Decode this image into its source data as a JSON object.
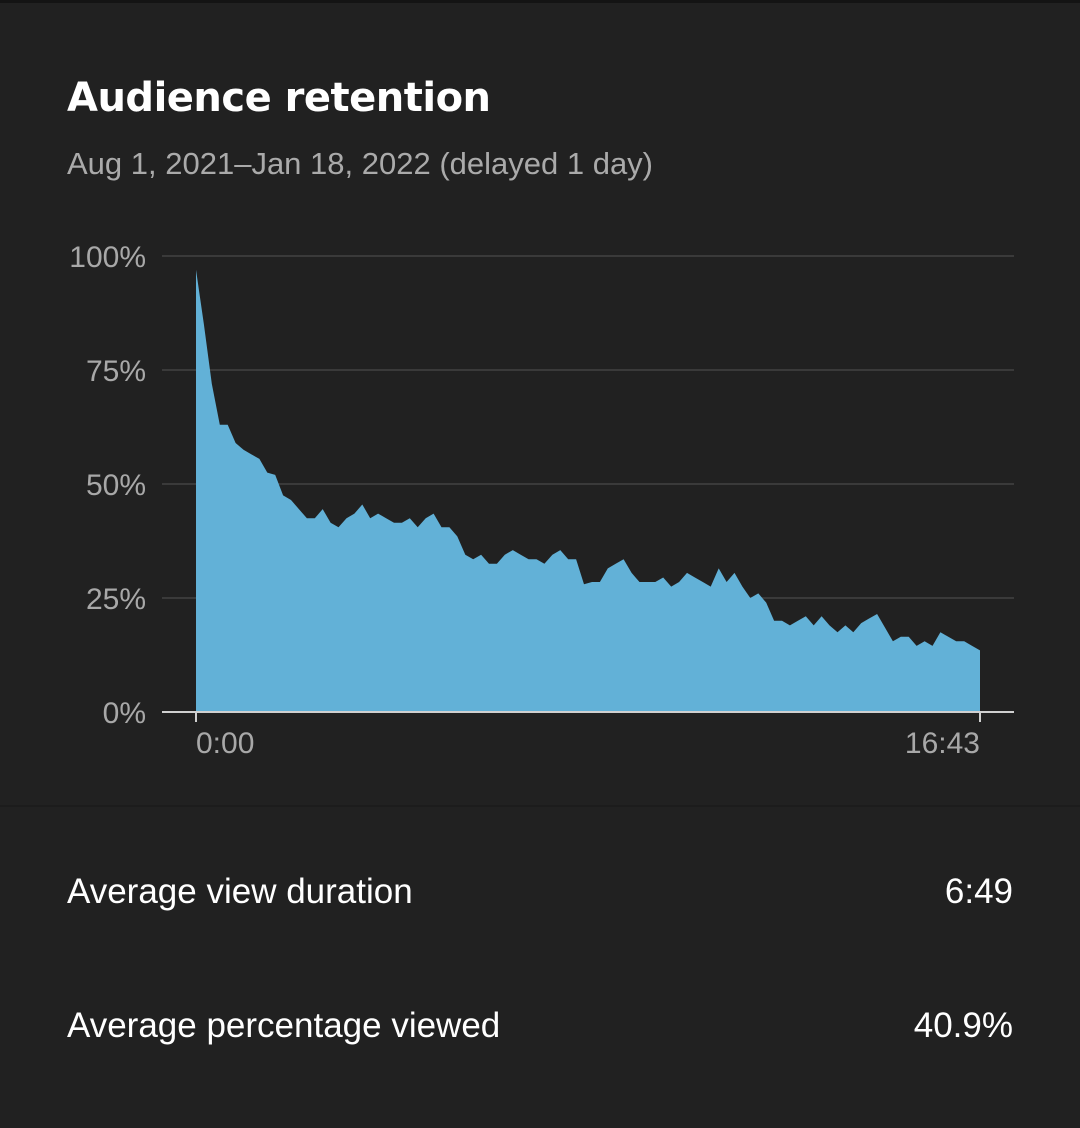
{
  "card": {
    "title": "Audience retention",
    "subtitle": "Aug 1, 2021–Jan 18, 2022 (delayed 1 day)"
  },
  "chart_data": {
    "type": "area",
    "x_tick_labels": [
      "0:00",
      "16:43"
    ],
    "y_tick_labels": [
      "100%",
      "75%",
      "50%",
      "25%",
      "0%"
    ],
    "y_ticks": [
      100,
      75,
      50,
      25,
      0
    ],
    "ylim": [
      0,
      100
    ],
    "grid": true,
    "fill_color": "#62b1d7",
    "series": [
      {
        "values": [
          97,
          85,
          72,
          63,
          63,
          59,
          57.5,
          56.5,
          55.5,
          52.5,
          52,
          47.5,
          46.5,
          44.5,
          42.5,
          42.5,
          44.5,
          41.5,
          40.5,
          42.5,
          43.5,
          45.5,
          42.5,
          43.5,
          42.5,
          41.5,
          41.5,
          42.5,
          40.5,
          42.5,
          43.5,
          40.5,
          40.5,
          38.5,
          34.5,
          33.5,
          34.5,
          32.5,
          32.5,
          34.5,
          35.5,
          34.5,
          33.5,
          33.5,
          32.5,
          34.5,
          35.5,
          33.5,
          33.5,
          28,
          28.5,
          28.5,
          31.5,
          32.5,
          33.5,
          30.5,
          28.5,
          28.5,
          28.5,
          29.5,
          27.5,
          28.5,
          30.5,
          29.5,
          28.5,
          27.5,
          31.5,
          28.5,
          30.5,
          27.5,
          25,
          26,
          24,
          20,
          20,
          19,
          20,
          21,
          19,
          21,
          19,
          17.5,
          19,
          17.5,
          19.5,
          20.5,
          21.5,
          18.5,
          15.5,
          16.5,
          16.5,
          14.5,
          15.5,
          14.5,
          17.5,
          16.5,
          15.5,
          15.5,
          14.5,
          13.5
        ]
      }
    ]
  },
  "stats": [
    {
      "label": "Average view duration",
      "value": "6:49"
    },
    {
      "label": "Average percentage viewed",
      "value": "40.9%"
    }
  ]
}
